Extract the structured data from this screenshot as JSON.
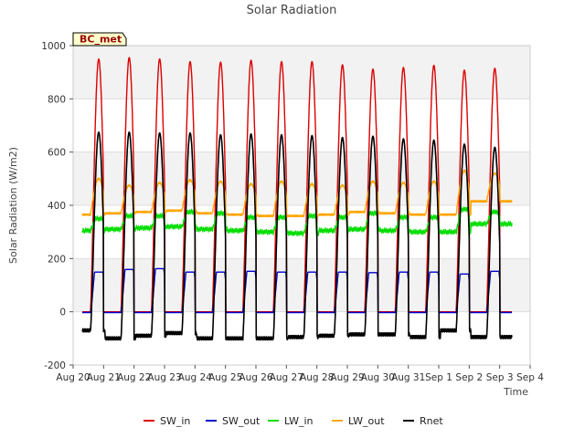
{
  "chart_data": {
    "type": "line",
    "title": "Solar Radiation",
    "xlabel": "Time",
    "ylabel": "Solar Radiation (W/m2)",
    "station_label": "BC_met",
    "ylim": [
      -200,
      1000
    ],
    "yticks": [
      -200,
      0,
      200,
      400,
      600,
      800,
      1000
    ],
    "xlim": [
      "2024-08-20",
      "2024-09-04"
    ],
    "xtick_labels": [
      "Aug 20",
      "Aug 21",
      "Aug 22",
      "Aug 23",
      "Aug 24",
      "Aug 25",
      "Aug 26",
      "Aug 27",
      "Aug 28",
      "Aug 29",
      "Aug 30",
      "Aug 31",
      "Sep 1",
      "Sep 2",
      "Sep 3",
      "Sep 4"
    ],
    "grid": true,
    "legend_position": "bottom",
    "series_colors": {
      "SW_in": "#dd0000",
      "SW_out": "#0000cc",
      "LW_in": "#00dd00",
      "LW_out": "#ffa500",
      "Rnet": "#000000"
    },
    "series": [
      {
        "name": "SW_in",
        "daily_peak": [
          950,
          955,
          950,
          940,
          938,
          945,
          940,
          940,
          928,
          912,
          918,
          926,
          908,
          915
        ]
      },
      {
        "name": "SW_out",
        "daily_peak": [
          152,
          162,
          165,
          152,
          152,
          155,
          152,
          152,
          152,
          150,
          152,
          152,
          145,
          155
        ]
      },
      {
        "name": "LW_in",
        "daily_night": [
          305,
          310,
          315,
          320,
          310,
          305,
          300,
          295,
          305,
          310,
          305,
          300,
          300,
          330
        ],
        "daily_day": [
          350,
          360,
          360,
          375,
          370,
          355,
          355,
          360,
          355,
          370,
          355,
          355,
          385,
          375
        ]
      },
      {
        "name": "LW_out",
        "daily_night": [
          365,
          370,
          375,
          380,
          370,
          365,
          360,
          360,
          365,
          375,
          370,
          365,
          365,
          415
        ],
        "daily_day": [
          500,
          475,
          485,
          495,
          490,
          480,
          490,
          480,
          475,
          490,
          485,
          490,
          530,
          520
        ]
      },
      {
        "name": "Rnet",
        "daily_peak": [
          675,
          675,
          672,
          672,
          665,
          668,
          665,
          662,
          655,
          660,
          650,
          645,
          630,
          618
        ],
        "daily_night": [
          -70,
          -100,
          -90,
          -80,
          -100,
          -100,
          -100,
          -95,
          -90,
          -85,
          -85,
          -95,
          -70,
          -95
        ]
      }
    ]
  }
}
